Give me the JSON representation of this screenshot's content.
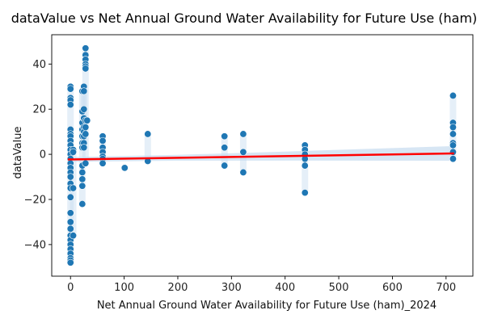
{
  "chart_data": {
    "type": "scatter",
    "title": "dataValue vs Net Annual Ground Water Availability for Future Use (ham)",
    "xlabel": "Net Annual Ground Water Availability for Future Use (ham)_2024",
    "ylabel": "dataValue",
    "xlim": [
      -35,
      750
    ],
    "ylim": [
      -54,
      53
    ],
    "xticks": [
      0,
      100,
      200,
      300,
      400,
      500,
      600,
      700
    ],
    "yticks": [
      -40,
      -20,
      0,
      20,
      40
    ],
    "grid": false,
    "legend": "none",
    "colors": {
      "points": "#1f77b4",
      "band": "#c6dbef",
      "regression": "#ff0000",
      "axes": "#000000"
    },
    "series": [
      {
        "values": [
          {
            "x": 0,
            "y": 30
          },
          {
            "x": 0,
            "y": 29
          },
          {
            "x": 0,
            "y": 25
          },
          {
            "x": 0,
            "y": 24
          },
          {
            "x": 0,
            "y": 22
          },
          {
            "x": 0,
            "y": 11
          },
          {
            "x": 0,
            "y": 9
          },
          {
            "x": 0,
            "y": 8
          },
          {
            "x": 0,
            "y": 6
          },
          {
            "x": 0,
            "y": 4
          },
          {
            "x": 0,
            "y": 2
          },
          {
            "x": 0,
            "y": 0
          },
          {
            "x": 0,
            "y": -2
          },
          {
            "x": 0,
            "y": -4
          },
          {
            "x": 0,
            "y": -6
          },
          {
            "x": 0,
            "y": -8
          },
          {
            "x": 0,
            "y": -10
          },
          {
            "x": 0,
            "y": -13
          },
          {
            "x": 0,
            "y": -15
          },
          {
            "x": 0,
            "y": -19
          },
          {
            "x": 0,
            "y": -26
          },
          {
            "x": 0,
            "y": -30
          },
          {
            "x": 0,
            "y": -33
          },
          {
            "x": 0,
            "y": -36
          },
          {
            "x": 0,
            "y": -38
          },
          {
            "x": 0,
            "y": -40
          },
          {
            "x": 0,
            "y": -42
          },
          {
            "x": 0,
            "y": -44
          },
          {
            "x": 0,
            "y": -46
          },
          {
            "x": 0,
            "y": -47
          },
          {
            "x": 0,
            "y": -48
          },
          {
            "x": 5,
            "y": 2
          },
          {
            "x": 5,
            "y": 1
          },
          {
            "x": 5,
            "y": -15
          },
          {
            "x": 5,
            "y": -36
          },
          {
            "x": 22,
            "y": 28
          },
          {
            "x": 22,
            "y": 19
          },
          {
            "x": 22,
            "y": 14
          },
          {
            "x": 22,
            "y": 11
          },
          {
            "x": 22,
            "y": 8
          },
          {
            "x": 22,
            "y": 5
          },
          {
            "x": 22,
            "y": 3
          },
          {
            "x": 22,
            "y": -5
          },
          {
            "x": 22,
            "y": -8
          },
          {
            "x": 22,
            "y": -11
          },
          {
            "x": 22,
            "y": -14
          },
          {
            "x": 22,
            "y": -22
          },
          {
            "x": 25,
            "y": 30
          },
          {
            "x": 25,
            "y": 28
          },
          {
            "x": 25,
            "y": 20
          },
          {
            "x": 25,
            "y": 16
          },
          {
            "x": 25,
            "y": 12
          },
          {
            "x": 25,
            "y": 10
          },
          {
            "x": 25,
            "y": 8
          },
          {
            "x": 25,
            "y": 5
          },
          {
            "x": 25,
            "y": 3
          },
          {
            "x": 28,
            "y": 47
          },
          {
            "x": 28,
            "y": 44
          },
          {
            "x": 28,
            "y": 42
          },
          {
            "x": 28,
            "y": 40
          },
          {
            "x": 28,
            "y": 39
          },
          {
            "x": 28,
            "y": 38
          },
          {
            "x": 28,
            "y": 15
          },
          {
            "x": 28,
            "y": 12
          },
          {
            "x": 28,
            "y": 9
          },
          {
            "x": 28,
            "y": -4
          },
          {
            "x": 31,
            "y": 15
          },
          {
            "x": 60,
            "y": 8
          },
          {
            "x": 60,
            "y": 6
          },
          {
            "x": 60,
            "y": 3
          },
          {
            "x": 60,
            "y": 1
          },
          {
            "x": 60,
            "y": -1
          },
          {
            "x": 60,
            "y": -2
          },
          {
            "x": 60,
            "y": -4
          },
          {
            "x": 101,
            "y": -6
          },
          {
            "x": 144,
            "y": 9
          },
          {
            "x": 144,
            "y": -3
          },
          {
            "x": 287,
            "y": 8
          },
          {
            "x": 287,
            "y": 3
          },
          {
            "x": 287,
            "y": -5
          },
          {
            "x": 322,
            "y": 9
          },
          {
            "x": 322,
            "y": 1
          },
          {
            "x": 322,
            "y": -8
          },
          {
            "x": 437,
            "y": 4
          },
          {
            "x": 437,
            "y": 2
          },
          {
            "x": 437,
            "y": 0
          },
          {
            "x": 437,
            "y": -2
          },
          {
            "x": 437,
            "y": -5
          },
          {
            "x": 437,
            "y": -17
          },
          {
            "x": 713,
            "y": 26
          },
          {
            "x": 713,
            "y": 14
          },
          {
            "x": 713,
            "y": 12
          },
          {
            "x": 713,
            "y": 9
          },
          {
            "x": 713,
            "y": 5
          },
          {
            "x": 713,
            "y": 4
          },
          {
            "x": 713,
            "y": 1
          },
          {
            "x": 713,
            "y": -2
          }
        ]
      }
    ],
    "regression": {
      "x": [
        -5,
        715
      ],
      "y": [
        -2.3,
        0.4
      ]
    }
  }
}
